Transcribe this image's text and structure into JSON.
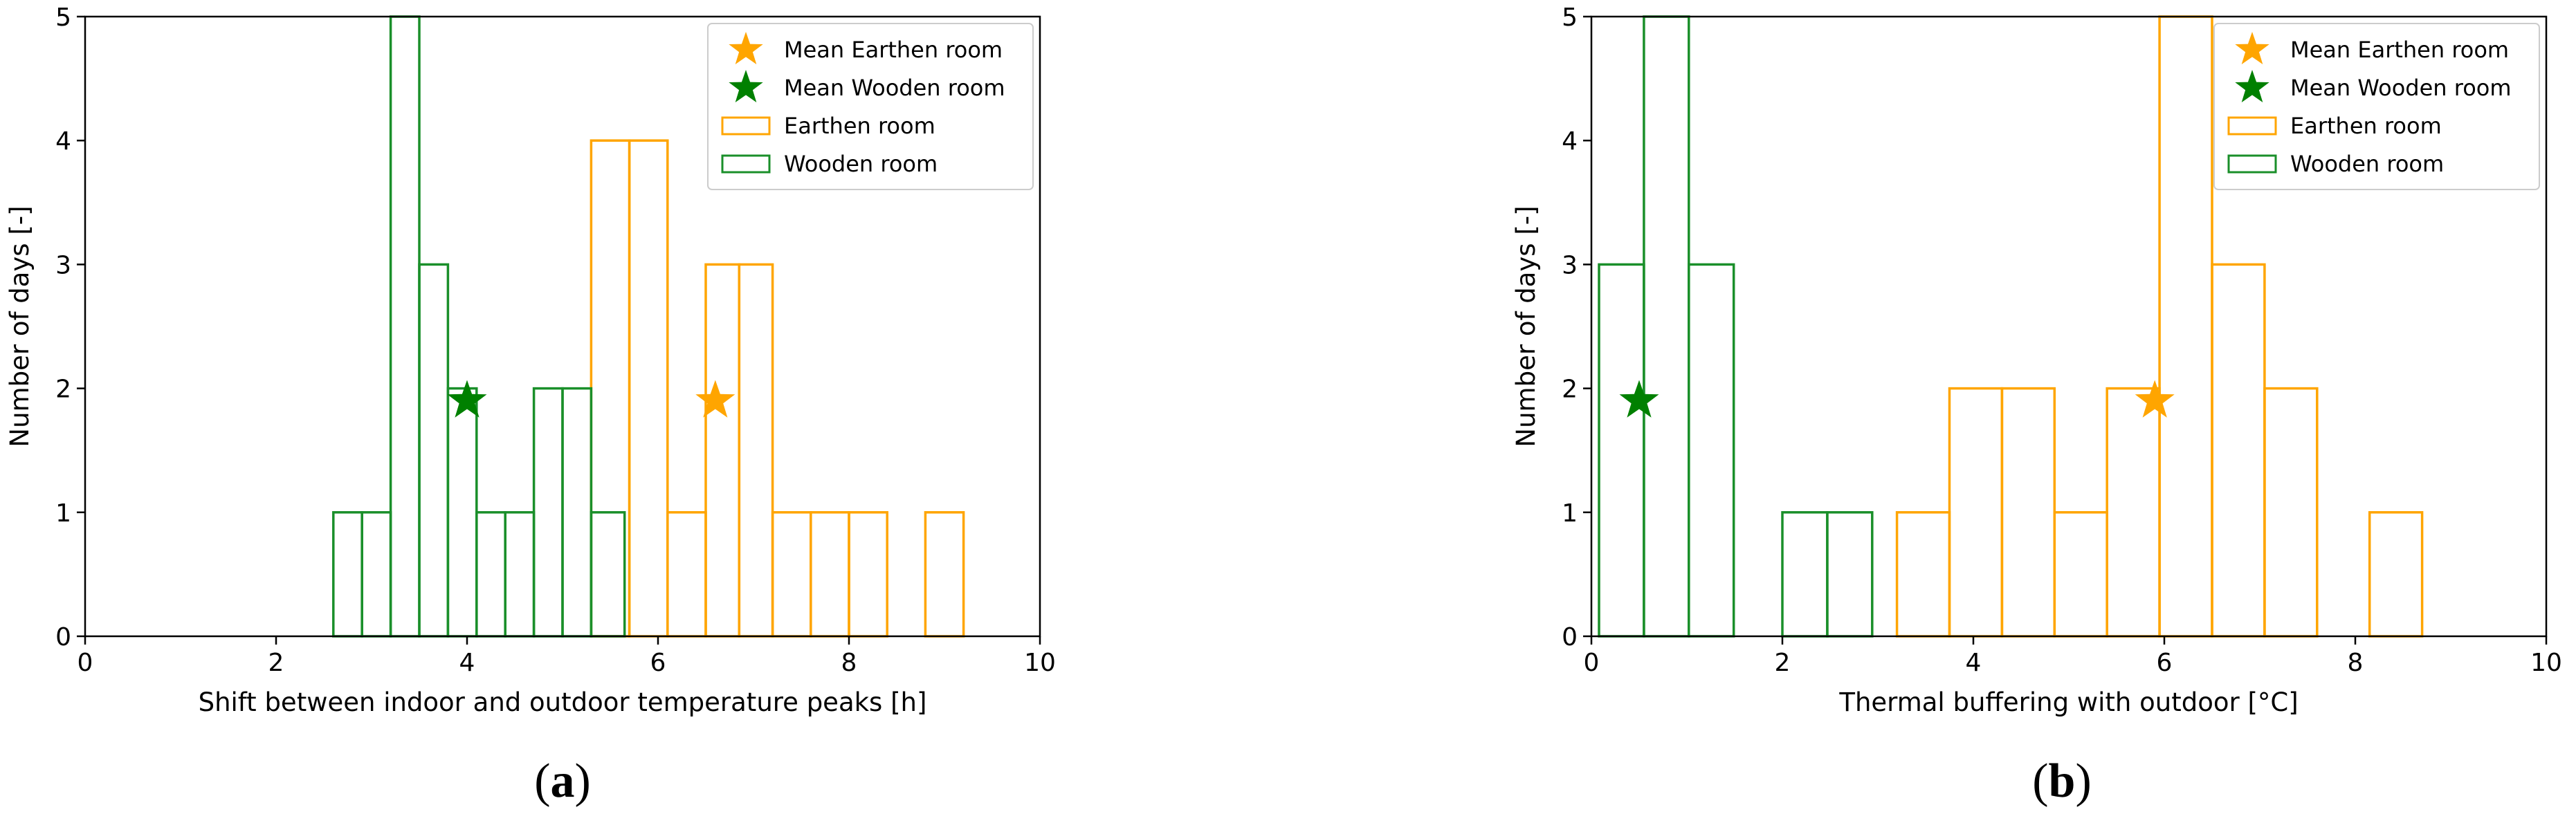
{
  "chart_data": [
    {
      "type": "histogram",
      "caption": "a",
      "xlabel": "Shift between indoor and outdoor temperature peaks [h]",
      "ylabel": "Number of days [-]",
      "xlim": [
        0,
        10
      ],
      "ylim": [
        0,
        5
      ],
      "xticks": [
        0,
        2,
        4,
        6,
        8,
        10
      ],
      "yticks": [
        0,
        1,
        2,
        3,
        4,
        5
      ],
      "grid": false,
      "legend_position": "top-right",
      "series": [
        {
          "name": "Earthen room",
          "kind": "histogram",
          "color": "#ffa500",
          "bins": [
            {
              "x0": 5.3,
              "x1": 5.7,
              "count": 4
            },
            {
              "x0": 5.7,
              "x1": 6.1,
              "count": 4
            },
            {
              "x0": 6.1,
              "x1": 6.5,
              "count": 1
            },
            {
              "x0": 6.5,
              "x1": 6.85,
              "count": 3
            },
            {
              "x0": 6.85,
              "x1": 7.2,
              "count": 3
            },
            {
              "x0": 7.2,
              "x1": 7.6,
              "count": 1
            },
            {
              "x0": 7.6,
              "x1": 8.0,
              "count": 1
            },
            {
              "x0": 8.0,
              "x1": 8.4,
              "count": 1
            },
            {
              "x0": 8.8,
              "x1": 9.2,
              "count": 1
            }
          ]
        },
        {
          "name": "Wooden room",
          "kind": "histogram",
          "color": "#1a8f2a",
          "bins": [
            {
              "x0": 2.6,
              "x1": 2.9,
              "count": 1
            },
            {
              "x0": 2.9,
              "x1": 3.2,
              "count": 1
            },
            {
              "x0": 3.2,
              "x1": 3.5,
              "count": 5
            },
            {
              "x0": 3.5,
              "x1": 3.8,
              "count": 3
            },
            {
              "x0": 3.8,
              "x1": 4.1,
              "count": 2
            },
            {
              "x0": 4.1,
              "x1": 4.4,
              "count": 1
            },
            {
              "x0": 4.4,
              "x1": 4.7,
              "count": 1
            },
            {
              "x0": 4.7,
              "x1": 5.0,
              "count": 2
            },
            {
              "x0": 5.0,
              "x1": 5.3,
              "count": 2
            },
            {
              "x0": 5.3,
              "x1": 5.65,
              "count": 1
            }
          ]
        },
        {
          "name": "Mean Earthen room",
          "kind": "marker",
          "marker": "star",
          "color": "#ffa500",
          "x": 6.6,
          "y": 1.9
        },
        {
          "name": "Mean Wooden room",
          "kind": "marker",
          "marker": "star",
          "color": "#008000",
          "x": 4.0,
          "y": 1.9
        }
      ]
    },
    {
      "type": "histogram",
      "caption": "b",
      "xlabel": "Thermal buffering with outdoor [°C]",
      "ylabel": "Number of days [-]",
      "xlim": [
        0,
        10
      ],
      "ylim": [
        0,
        5
      ],
      "xticks": [
        0,
        2,
        4,
        6,
        8,
        10
      ],
      "yticks": [
        0,
        1,
        2,
        3,
        4,
        5
      ],
      "grid": false,
      "legend_position": "top-right",
      "series": [
        {
          "name": "Earthen room",
          "kind": "histogram",
          "color": "#ffa500",
          "bins": [
            {
              "x0": 3.2,
              "x1": 3.75,
              "count": 1
            },
            {
              "x0": 3.75,
              "x1": 4.3,
              "count": 2
            },
            {
              "x0": 4.3,
              "x1": 4.85,
              "count": 2
            },
            {
              "x0": 4.85,
              "x1": 5.4,
              "count": 1
            },
            {
              "x0": 5.4,
              "x1": 5.95,
              "count": 2
            },
            {
              "x0": 5.95,
              "x1": 6.5,
              "count": 5
            },
            {
              "x0": 6.5,
              "x1": 7.05,
              "count": 3
            },
            {
              "x0": 7.05,
              "x1": 7.6,
              "count": 2
            },
            {
              "x0": 8.15,
              "x1": 8.7,
              "count": 1
            }
          ]
        },
        {
          "name": "Wooden room",
          "kind": "histogram",
          "color": "#1a8f2a",
          "bins": [
            {
              "x0": 0.08,
              "x1": 0.55,
              "count": 3
            },
            {
              "x0": 0.55,
              "x1": 1.02,
              "count": 5
            },
            {
              "x0": 1.02,
              "x1": 1.49,
              "count": 3
            },
            {
              "x0": 2.0,
              "x1": 2.47,
              "count": 1
            },
            {
              "x0": 2.47,
              "x1": 2.94,
              "count": 1
            }
          ]
        },
        {
          "name": "Mean Earthen room",
          "kind": "marker",
          "marker": "star",
          "color": "#ffa500",
          "x": 5.9,
          "y": 1.9
        },
        {
          "name": "Mean Wooden room",
          "kind": "marker",
          "marker": "star",
          "color": "#008000",
          "x": 0.5,
          "y": 1.9
        }
      ]
    }
  ]
}
